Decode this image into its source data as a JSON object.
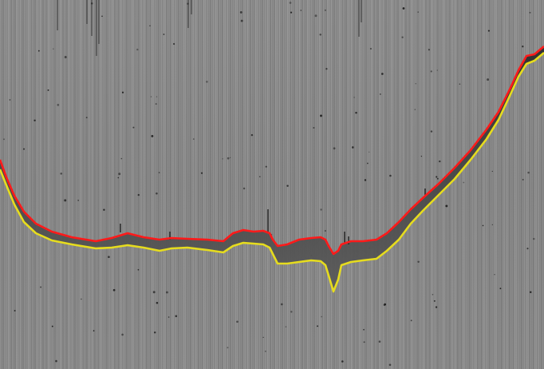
{
  "image": {
    "description_kind": "grayscale-scan-with-layer-boundaries",
    "colors": {
      "background": "#8c8c8c",
      "tissue_band": "#3a3a3a",
      "upper_boundary": "#ff1a1a",
      "lower_boundary": "#e6dc1e",
      "speckle": "#1e1e1e"
    }
  }
}
